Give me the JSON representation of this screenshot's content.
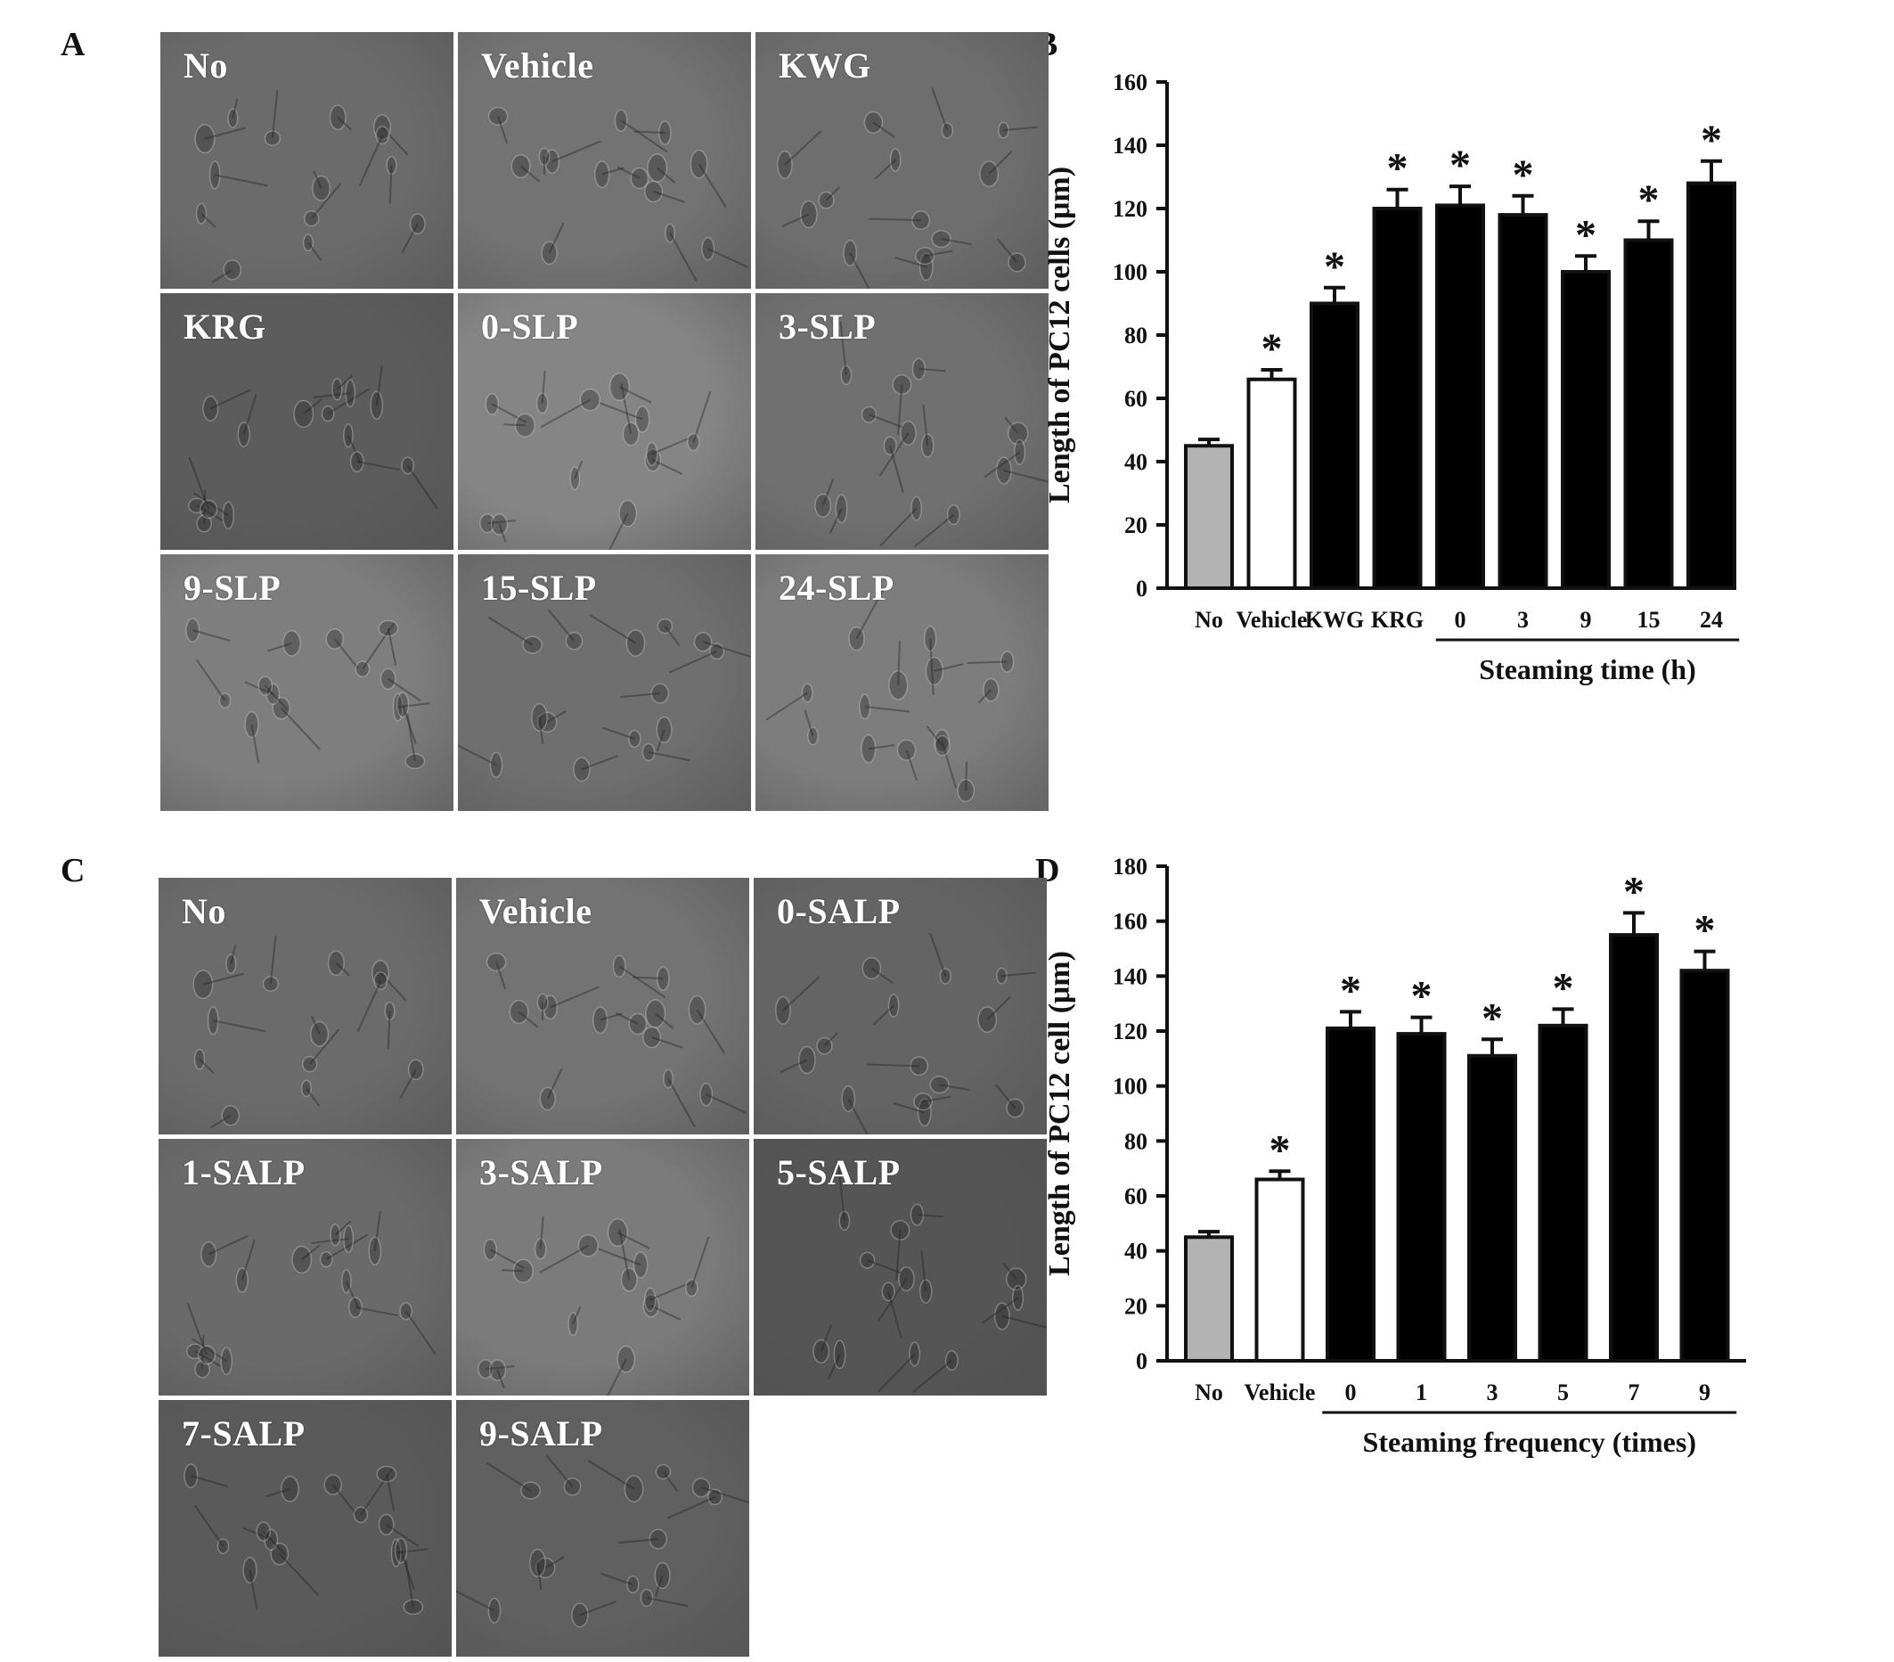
{
  "panels": {
    "A": {
      "letter": "A",
      "images": [
        {
          "label": "No",
          "tone": "#6b6b6b"
        },
        {
          "label": "Vehicle",
          "tone": "#737373"
        },
        {
          "label": "KWG",
          "tone": "#6e6e6e"
        },
        {
          "label": "KRG",
          "tone": "#5c5c5c"
        },
        {
          "label": "0-SLP",
          "tone": "#858585"
        },
        {
          "label": "3-SLP",
          "tone": "#707070"
        },
        {
          "label": "9-SLP",
          "tone": "#7e7e7e"
        },
        {
          "label": "15-SLP",
          "tone": "#6f6f6f"
        },
        {
          "label": "24-SLP",
          "tone": "#7d7d7d"
        }
      ]
    },
    "C": {
      "letter": "C",
      "images": [
        {
          "label": "No",
          "tone": "#6b6b6b"
        },
        {
          "label": "Vehicle",
          "tone": "#737373"
        },
        {
          "label": "0-SALP",
          "tone": "#646464"
        },
        {
          "label": "1-SALP",
          "tone": "#6a6a6a"
        },
        {
          "label": "3-SALP",
          "tone": "#7b7b7b"
        },
        {
          "label": "5-SALP",
          "tone": "#555555"
        },
        {
          "label": "7-SALP",
          "tone": "#5a5a5a"
        },
        {
          "label": "9-SALP",
          "tone": "#606060"
        }
      ]
    },
    "B": {
      "letter": "B"
    },
    "D": {
      "letter": "D"
    }
  },
  "chart_data": [
    {
      "panel": "B",
      "type": "bar",
      "ylabel": "Length of PC12 cells (μm)",
      "xlabel": "Steaming time (h)",
      "ylim": [
        0,
        160
      ],
      "yticks": [
        0,
        20,
        40,
        60,
        80,
        100,
        120,
        140,
        160
      ],
      "categories": [
        "No",
        "Vehicle",
        "KWG",
        "KRG",
        "0",
        "3",
        "9",
        "15",
        "24"
      ],
      "values": [
        45,
        66,
        90,
        120,
        121,
        118,
        100,
        110,
        128
      ],
      "errors": [
        2,
        3,
        5,
        6,
        6,
        6,
        5,
        6,
        7
      ],
      "significant": [
        false,
        true,
        true,
        true,
        true,
        true,
        true,
        true,
        true
      ],
      "significance_mark": "*",
      "bar_colors": [
        "#b3b3b3",
        "#ffffff",
        "#000000",
        "#000000",
        "#000000",
        "#000000",
        "#000000",
        "#000000",
        "#000000"
      ],
      "grouped_label_first_index": 4
    },
    {
      "panel": "D",
      "type": "bar",
      "ylabel": "Length of PC12 cell (μm)",
      "xlabel": "Steaming frequency (times)",
      "ylim": [
        0,
        180
      ],
      "yticks": [
        0,
        20,
        40,
        60,
        80,
        100,
        120,
        140,
        160,
        180
      ],
      "categories": [
        "No",
        "Vehicle",
        "0",
        "1",
        "3",
        "5",
        "7",
        "9"
      ],
      "values": [
        45,
        66,
        121,
        119,
        111,
        122,
        155,
        142
      ],
      "errors": [
        2,
        3,
        6,
        6,
        6,
        6,
        8,
        7
      ],
      "significant": [
        false,
        true,
        true,
        true,
        true,
        true,
        true,
        true
      ],
      "significance_mark": "*",
      "bar_colors": [
        "#b3b3b3",
        "#ffffff",
        "#000000",
        "#000000",
        "#000000",
        "#000000",
        "#000000",
        "#000000"
      ],
      "grouped_label_first_index": 2
    }
  ]
}
